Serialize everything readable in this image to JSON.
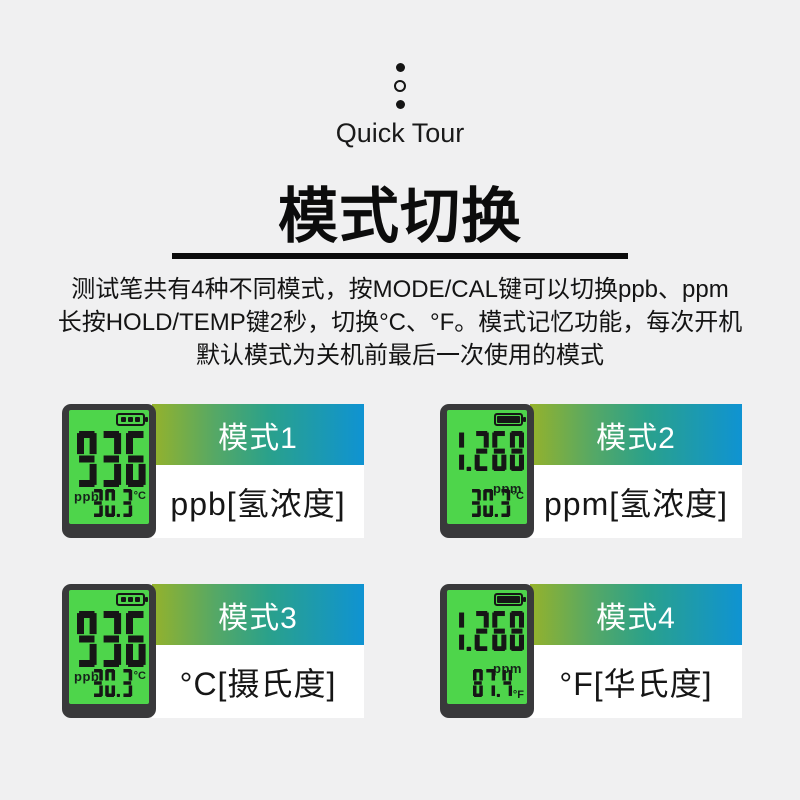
{
  "page": {
    "quick_tour": "Quick Tour",
    "title": "模式切换",
    "description_lines": [
      "测试笔共有4种不同模式，按MODE/CAL键可以切换ppb、ppm",
      "长按HOLD/TEMP键2秒，切换°C、°F。模式记忆功能，每次开机",
      "默认模式为关机前最后一次使用的模式"
    ]
  },
  "colors": {
    "background": "#f0f0f1",
    "banner_gradient_left": "#95b22b",
    "banner_gradient_mid": "#2aa18b",
    "banner_gradient_right": "#0f93d2",
    "lcd_green": "#4ed54b",
    "device_body": "#39393b",
    "segment_color": "#161616",
    "title_color": "#0c0c0c"
  },
  "cards": [
    {
      "banner_label": "模式1",
      "mode_label": "ppb[氢浓度]",
      "lcd": {
        "main": "936",
        "unit": "ppb",
        "unit_side": "left",
        "temp": "30.3",
        "temp_unit": "°C",
        "temp_unit_valign": "top",
        "battery": "bars"
      }
    },
    {
      "banner_label": "模式2",
      "mode_label": "ppm[氢浓度]",
      "lcd": {
        "main": "1.268",
        "unit": "ppm",
        "unit_side": "right",
        "temp": "30.3",
        "temp_unit": "°C",
        "temp_unit_valign": "top",
        "battery": "solid"
      }
    },
    {
      "banner_label": "模式3",
      "mode_label": "°C[摄氏度]",
      "lcd": {
        "main": "936",
        "unit": "ppb",
        "unit_side": "left",
        "temp": "30.3",
        "temp_unit": "°C",
        "temp_unit_valign": "top",
        "battery": "bars"
      }
    },
    {
      "banner_label": "模式4",
      "mode_label": "°F[华氏度]",
      "lcd": {
        "main": "1.268",
        "unit": "ppm",
        "unit_side": "right",
        "temp": "87.4",
        "temp_unit": "°F",
        "temp_unit_valign": "bottom",
        "battery": "solid"
      }
    }
  ]
}
